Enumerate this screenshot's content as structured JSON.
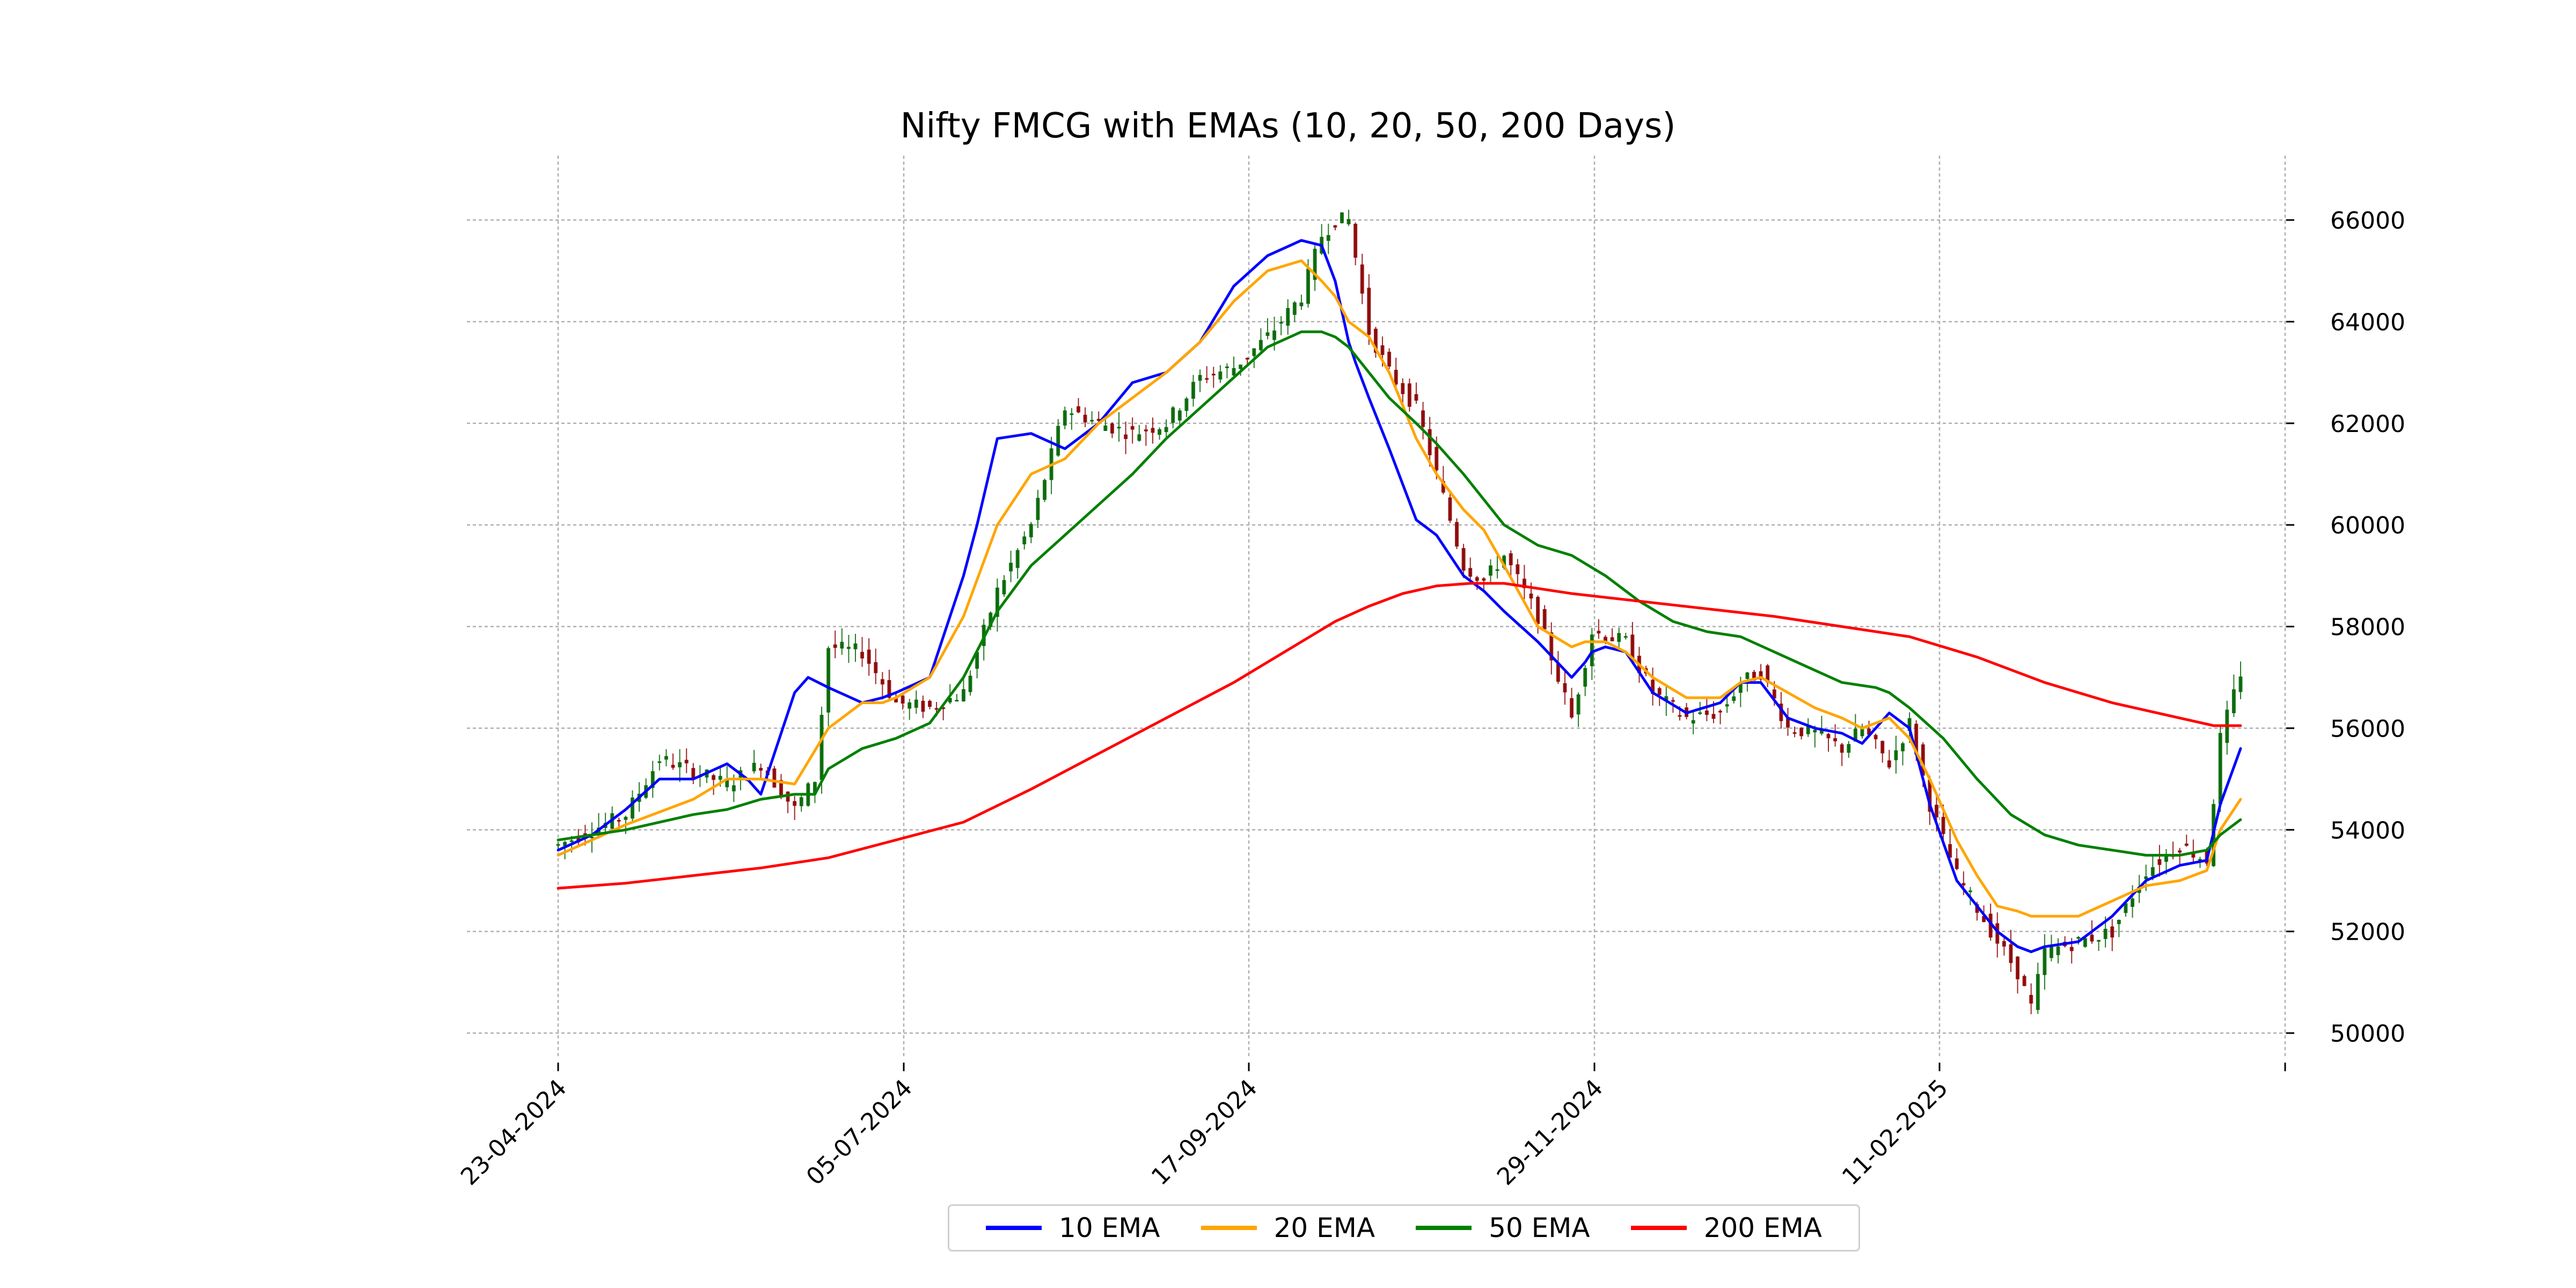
{
  "chart_data": {
    "type": "line",
    "title": "Nifty FMCG with EMAs (10, 20, 50, 200 Days)",
    "xlabel": "",
    "ylabel": "",
    "ylim": [
      49500,
      66800
    ],
    "x_tick_labels": [
      "23-04-2024",
      "05-07-2024",
      "17-09-2024",
      "29-11-2024",
      "11-02-2025",
      ""
    ],
    "y_ticks": [
      50000,
      52000,
      54000,
      56000,
      58000,
      60000,
      62000,
      64000,
      66000
    ],
    "y_tick_labels": [
      "50000",
      "52000",
      "54000",
      "56000",
      "58000",
      "60000",
      "62000",
      "64000",
      "66000"
    ],
    "grid": true,
    "legend_position": "bottom-center",
    "trading_days": 249,
    "candles": {
      "up_color": "#006400",
      "down_color": "#8b0000",
      "note_open_close_trend": [
        [
          0,
          53700
        ],
        [
          10,
          54300
        ],
        [
          15,
          55400
        ],
        [
          25,
          54900
        ],
        [
          30,
          55300
        ],
        [
          35,
          54400
        ],
        [
          38,
          55000
        ],
        [
          40,
          57600
        ],
        [
          45,
          57500
        ],
        [
          50,
          56500
        ],
        [
          55,
          56400
        ],
        [
          60,
          56700
        ],
        [
          65,
          58700
        ],
        [
          70,
          60000
        ],
        [
          75,
          62300
        ],
        [
          80,
          62000
        ],
        [
          85,
          61800
        ],
        [
          90,
          62000
        ],
        [
          95,
          62900
        ],
        [
          100,
          63100
        ],
        [
          105,
          63700
        ],
        [
          110,
          64500
        ],
        [
          113,
          65700
        ],
        [
          115,
          66000
        ],
        [
          117,
          66000
        ],
        [
          120,
          63800
        ],
        [
          123,
          63000
        ],
        [
          127,
          62300
        ],
        [
          130,
          61000
        ],
        [
          134,
          59200
        ],
        [
          137,
          58900
        ],
        [
          140,
          59400
        ],
        [
          145,
          58200
        ],
        [
          150,
          56200
        ],
        [
          153,
          57900
        ],
        [
          158,
          57700
        ],
        [
          162,
          56700
        ],
        [
          167,
          56200
        ],
        [
          172,
          56300
        ],
        [
          175,
          56900
        ],
        [
          178,
          57100
        ],
        [
          182,
          56000
        ],
        [
          186,
          55900
        ],
        [
          190,
          55600
        ],
        [
          193,
          56000
        ],
        [
          197,
          55300
        ],
        [
          200,
          56100
        ],
        [
          203,
          54500
        ],
        [
          207,
          53100
        ],
        [
          213,
          51800
        ],
        [
          216,
          51200
        ],
        [
          218,
          50500
        ],
        [
          220,
          51600
        ],
        [
          225,
          51800
        ],
        [
          230,
          52000
        ],
        [
          235,
          53200
        ],
        [
          240,
          53700
        ],
        [
          244,
          53400
        ],
        [
          246,
          55800
        ],
        [
          249,
          57100
        ]
      ]
    },
    "series": [
      {
        "name": "10 EMA",
        "color": "#0000ff",
        "x": [
          0,
          5,
          10,
          15,
          20,
          25,
          28,
          30,
          35,
          37,
          40,
          45,
          48,
          50,
          55,
          60,
          62,
          65,
          70,
          75,
          80,
          85,
          90,
          95,
          100,
          105,
          110,
          113,
          115,
          117,
          118,
          120,
          123,
          127,
          130,
          134,
          137,
          140,
          145,
          150,
          152,
          153,
          155,
          158,
          162,
          167,
          172,
          175,
          178,
          182,
          186,
          190,
          193,
          195,
          197,
          200,
          203,
          207,
          210,
          213,
          216,
          218,
          220,
          225,
          230,
          235,
          240,
          244,
          246,
          249
        ],
        "values": [
          53600,
          53900,
          54400,
          55000,
          55000,
          55300,
          55000,
          54700,
          56700,
          57000,
          56800,
          56500,
          56600,
          56700,
          57000,
          59000,
          60000,
          61700,
          61800,
          61500,
          62000,
          62800,
          63000,
          63600,
          64700,
          65300,
          65600,
          65500,
          64800,
          63600,
          63200,
          62500,
          61500,
          60100,
          59800,
          59000,
          58700,
          58300,
          57700,
          57000,
          57300,
          57500,
          57600,
          57500,
          56700,
          56300,
          56500,
          56900,
          56900,
          56200,
          56000,
          55900,
          55700,
          56000,
          56300,
          56000,
          54500,
          53000,
          52500,
          52000,
          51700,
          51600,
          51700,
          51800,
          52300,
          53000,
          53300,
          53400,
          54500,
          55600
        ]
      },
      {
        "name": "20 EMA",
        "color": "#ffa500",
        "x": [
          0,
          10,
          20,
          25,
          30,
          35,
          40,
          45,
          48,
          50,
          55,
          60,
          65,
          70,
          75,
          80,
          85,
          90,
          95,
          100,
          105,
          110,
          113,
          115,
          117,
          118,
          120,
          123,
          127,
          130,
          134,
          137,
          140,
          145,
          150,
          152,
          155,
          158,
          162,
          167,
          172,
          175,
          178,
          182,
          186,
          190,
          193,
          195,
          197,
          200,
          203,
          207,
          210,
          213,
          216,
          218,
          220,
          225,
          230,
          235,
          240,
          244,
          246,
          249
        ],
        "values": [
          53500,
          54100,
          54600,
          55000,
          55000,
          54900,
          56000,
          56500,
          56500,
          56600,
          57000,
          58200,
          60000,
          61000,
          61300,
          62000,
          62500,
          63000,
          63600,
          64400,
          65000,
          65200,
          64800,
          64500,
          64000,
          63900,
          63700,
          63000,
          61700,
          61000,
          60300,
          59900,
          59200,
          58000,
          57600,
          57700,
          57700,
          57500,
          57000,
          56600,
          56600,
          56900,
          57000,
          56700,
          56400,
          56200,
          56000,
          56100,
          56200,
          55800,
          55000,
          53800,
          53100,
          52500,
          52400,
          52300,
          52300,
          52300,
          52600,
          52900,
          53000,
          53200,
          54000,
          54600
        ]
      },
      {
        "name": "50 EMA",
        "color": "#008000",
        "x": [
          0,
          10,
          20,
          25,
          30,
          35,
          38,
          40,
          45,
          50,
          55,
          60,
          65,
          70,
          75,
          80,
          85,
          90,
          95,
          100,
          105,
          110,
          113,
          115,
          117,
          120,
          123,
          127,
          130,
          134,
          137,
          140,
          145,
          150,
          155,
          160,
          165,
          170,
          175,
          180,
          185,
          190,
          195,
          197,
          200,
          205,
          210,
          215,
          220,
          225,
          230,
          235,
          240,
          244,
          246,
          249
        ],
        "values": [
          53800,
          54000,
          54300,
          54400,
          54600,
          54700,
          54700,
          55200,
          55600,
          55800,
          56100,
          57000,
          58300,
          59200,
          59800,
          60400,
          61000,
          61700,
          62300,
          62900,
          63500,
          63800,
          63800,
          63700,
          63500,
          63000,
          62500,
          62000,
          61600,
          61000,
          60500,
          60000,
          59600,
          59400,
          59000,
          58500,
          58100,
          57900,
          57800,
          57500,
          57200,
          56900,
          56800,
          56700,
          56400,
          55800,
          55000,
          54300,
          53900,
          53700,
          53600,
          53500,
          53500,
          53600,
          53900,
          54200
        ]
      },
      {
        "name": "200 EMA",
        "color": "#ff0000",
        "x": [
          0,
          10,
          20,
          30,
          40,
          50,
          60,
          70,
          80,
          90,
          100,
          110,
          115,
          120,
          125,
          130,
          135,
          140,
          150,
          160,
          170,
          180,
          190,
          200,
          210,
          220,
          230,
          240,
          245,
          249
        ],
        "values": [
          52850,
          52950,
          53100,
          53250,
          53450,
          53800,
          54150,
          54800,
          55500,
          56200,
          56900,
          57700,
          58100,
          58400,
          58650,
          58800,
          58850,
          58850,
          58650,
          58500,
          58350,
          58200,
          58000,
          57800,
          57400,
          56900,
          56500,
          56200,
          56050,
          56050
        ]
      }
    ]
  }
}
